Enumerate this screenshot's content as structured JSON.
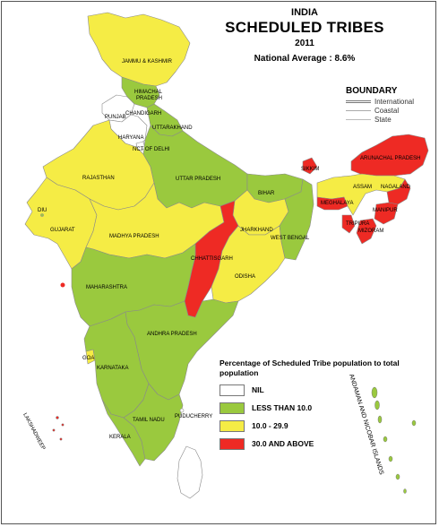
{
  "title": {
    "country": "INDIA",
    "main": "SCHEDULED TRIBES",
    "year": "2011",
    "national_average": "National Average : 8.6%"
  },
  "boundary": {
    "heading": "BOUNDARY",
    "items": [
      "International",
      "Coastal",
      "State"
    ]
  },
  "legend": {
    "title": "Percentage of Scheduled Tribe population to total population",
    "items": [
      {
        "label": "NIL",
        "color": "#ffffff"
      },
      {
        "label": "LESS THAN 10.0",
        "color": "#9ac93e"
      },
      {
        "label": "10.0 - 29.9",
        "color": "#f5ec45"
      },
      {
        "label": "30.0 AND ABOVE",
        "color": "#ee2a24"
      }
    ]
  },
  "regions": [
    {
      "name": "JAMMU & KASHMIR",
      "category": "10.0 - 29.9"
    },
    {
      "name": "HIMACHAL PRADESH",
      "category": "LESS THAN 10.0"
    },
    {
      "name": "CHANDIGARH",
      "category": "NIL"
    },
    {
      "name": "PUNJAB",
      "category": "NIL"
    },
    {
      "name": "UTTARAKHAND",
      "category": "LESS THAN 10.0"
    },
    {
      "name": "HARYANA",
      "category": "NIL"
    },
    {
      "name": "NCT OF DELHI",
      "category": "NIL"
    },
    {
      "name": "RAJASTHAN",
      "category": "10.0 - 29.9"
    },
    {
      "name": "UTTAR PRADESH",
      "category": "LESS THAN 10.0"
    },
    {
      "name": "BIHAR",
      "category": "LESS THAN 10.0"
    },
    {
      "name": "SIKKIM",
      "category": "30.0 AND ABOVE"
    },
    {
      "name": "ARUNACHAL PRADESH",
      "category": "30.0 AND ABOVE"
    },
    {
      "name": "ASSAM",
      "category": "10.0 - 29.9"
    },
    {
      "name": "NAGALAND",
      "category": "30.0 AND ABOVE"
    },
    {
      "name": "MANIPUR",
      "category": "30.0 AND ABOVE"
    },
    {
      "name": "MEGHALAYA",
      "category": "30.0 AND ABOVE"
    },
    {
      "name": "TRIPURA",
      "category": "30.0 AND ABOVE"
    },
    {
      "name": "MIZORAM",
      "category": "30.0 AND ABOVE"
    },
    {
      "name": "GUJARAT",
      "category": "10.0 - 29.9"
    },
    {
      "name": "DIU",
      "category": "LESS THAN 10.0"
    },
    {
      "name": "MADHYA PRADESH",
      "category": "10.0 - 29.9"
    },
    {
      "name": "JHARKHAND",
      "category": "10.0 - 29.9"
    },
    {
      "name": "WEST BENGAL",
      "category": "LESS THAN 10.0"
    },
    {
      "name": "CHHATTISGARH",
      "category": "30.0 AND ABOVE"
    },
    {
      "name": "ODISHA",
      "category": "10.0 - 29.9"
    },
    {
      "name": "MAHARASHTRA",
      "category": "LESS THAN 10.0"
    },
    {
      "name": "ANDHRA PRADESH",
      "category": "LESS THAN 10.0"
    },
    {
      "name": "GOA",
      "category": "10.0 - 29.9"
    },
    {
      "name": "KARNATAKA",
      "category": "LESS THAN 10.0"
    },
    {
      "name": "TAMIL NADU",
      "category": "LESS THAN 10.0"
    },
    {
      "name": "PUDUCHERRY",
      "category": "NIL"
    },
    {
      "name": "KERALA",
      "category": "LESS THAN 10.0"
    },
    {
      "name": "LAKSHADWEEP",
      "category": "30.0 AND ABOVE"
    },
    {
      "name": "ANDAMAN AND NICOBAR ISLANDS",
      "category": "LESS THAN 10.0"
    }
  ],
  "labels": {
    "jk": "JAMMU & KASHMIR",
    "hp1": "HIMACHAL",
    "hp2": "PRADESH",
    "chd": "CHANDIGARH",
    "pb": "PUNJAB",
    "uk": "UTTARAKHAND",
    "hr": "HARYANA",
    "dl": "NCT OF DELHI",
    "rj": "RAJASTHAN",
    "up": "UTTAR PRADESH",
    "br": "BIHAR",
    "sk": "SIKKIM",
    "ar": "ARUNACHAL PRADESH",
    "as": "ASSAM",
    "nl": "NAGALAND",
    "mn": "MANIPUR",
    "ml": "MEGHALAYA",
    "tr": "TRIPURA",
    "mz": "MIZORAM",
    "gj": "GUJARAT",
    "diu": "DIU",
    "mp": "MADHYA PRADESH",
    "jh": "JHARKHAND",
    "wb": "WEST BENGAL",
    "cg": "CHHATTISGARH",
    "od": "ODISHA",
    "mh": "MAHARASHTRA",
    "ap": "ANDHRA PRADESH",
    "goa": "GOA",
    "ka": "KARNATAKA",
    "tn": "TAMIL NADU",
    "py": "PUDUCHERRY",
    "kl": "KERALA",
    "ld": "LAKSHADWEEP",
    "an": "ANDAMAN AND NICOBAR ISLANDS"
  }
}
